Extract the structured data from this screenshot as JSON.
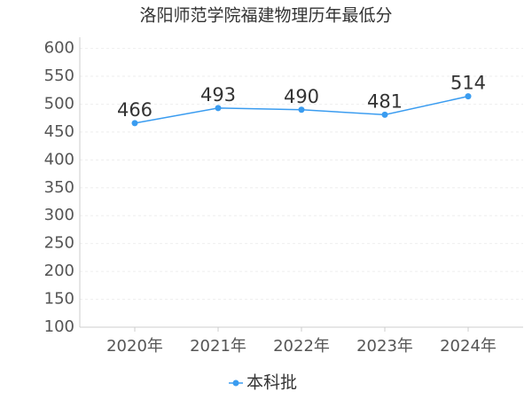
{
  "chart_data": {
    "type": "line",
    "title": "洛阳师范学院福建物理历年最低分",
    "categories": [
      "2020年",
      "2021年",
      "2022年",
      "2023年",
      "2024年"
    ],
    "series": [
      {
        "name": "本科批",
        "color": "#3a9cf0",
        "values": [
          466,
          493,
          490,
          481,
          514
        ]
      }
    ],
    "ylim": [
      100,
      620
    ],
    "yticks": [
      100,
      150,
      200,
      250,
      300,
      350,
      400,
      450,
      500,
      550,
      600
    ],
    "grid": true
  }
}
